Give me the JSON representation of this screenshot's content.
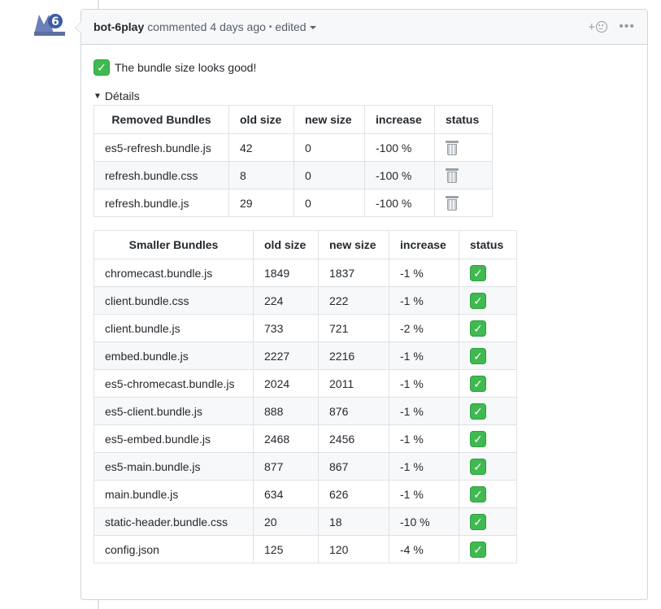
{
  "comment": {
    "author": "bot-6play",
    "action": "commented",
    "time": "4 days ago",
    "edited_label": "edited",
    "reaction_plus": "+"
  },
  "body": {
    "summary": "The bundle size looks good!",
    "details_label": "Détails"
  },
  "removed_table": {
    "headers": [
      "Removed Bundles",
      "old size",
      "new size",
      "increase",
      "status"
    ],
    "rows": [
      {
        "name": "es5-refresh.bundle.js",
        "old": "42",
        "new": "0",
        "increase": "-100 %",
        "status": "trash-icon"
      },
      {
        "name": "refresh.bundle.css",
        "old": "8",
        "new": "0",
        "increase": "-100 %",
        "status": "trash-icon"
      },
      {
        "name": "refresh.bundle.js",
        "old": "29",
        "new": "0",
        "increase": "-100 %",
        "status": "trash-icon"
      }
    ]
  },
  "smaller_table": {
    "headers": [
      "Smaller Bundles",
      "old size",
      "new size",
      "increase",
      "status"
    ],
    "rows": [
      {
        "name": "chromecast.bundle.js",
        "old": "1849",
        "new": "1837",
        "increase": "-1 %",
        "status": "check-icon"
      },
      {
        "name": "client.bundle.css",
        "old": "224",
        "new": "222",
        "increase": "-1 %",
        "status": "check-icon"
      },
      {
        "name": "client.bundle.js",
        "old": "733",
        "new": "721",
        "increase": "-2 %",
        "status": "check-icon"
      },
      {
        "name": "embed.bundle.js",
        "old": "2227",
        "new": "2216",
        "increase": "-1 %",
        "status": "check-icon"
      },
      {
        "name": "es5-chromecast.bundle.js",
        "old": "2024",
        "new": "2011",
        "increase": "-1 %",
        "status": "check-icon"
      },
      {
        "name": "es5-client.bundle.js",
        "old": "888",
        "new": "876",
        "increase": "-1 %",
        "status": "check-icon"
      },
      {
        "name": "es5-embed.bundle.js",
        "old": "2468",
        "new": "2456",
        "increase": "-1 %",
        "status": "check-icon"
      },
      {
        "name": "es5-main.bundle.js",
        "old": "877",
        "new": "867",
        "increase": "-1 %",
        "status": "check-icon"
      },
      {
        "name": "main.bundle.js",
        "old": "634",
        "new": "626",
        "increase": "-1 %",
        "status": "check-icon"
      },
      {
        "name": "static-header.bundle.css",
        "old": "20",
        "new": "18",
        "increase": "-10 %",
        "status": "check-icon"
      },
      {
        "name": "config.json",
        "old": "125",
        "new": "120",
        "increase": "-4 %",
        "status": "check-icon"
      }
    ]
  },
  "colors": {
    "check_green": "#3fb950",
    "border": "#d1d5da",
    "header_bg": "#f6f8fa"
  }
}
